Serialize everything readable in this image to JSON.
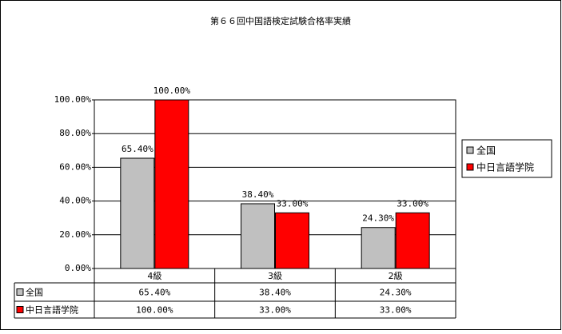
{
  "chart_data": {
    "type": "bar",
    "title": "第６６回中国語検定試験合格率実績",
    "categories": [
      "4級",
      "3級",
      "2級"
    ],
    "series": [
      {
        "name": "全国",
        "color": "#c0c0c0",
        "values": [
          65.4,
          38.4,
          24.3
        ],
        "value_labels": [
          "65.40%",
          "38.40%",
          "24.30%"
        ]
      },
      {
        "name": "中日言語学院",
        "color": "#ff0000",
        "values": [
          100,
          33,
          33
        ],
        "value_labels": [
          "100.00%",
          "33.00%",
          "33.00%"
        ]
      }
    ],
    "ylim": [
      0,
      100
    ],
    "yticks": [
      {
        "value": 0,
        "label": "0.00%"
      },
      {
        "value": 20,
        "label": "20.00%"
      },
      {
        "value": 40,
        "label": "40.00%"
      },
      {
        "value": 60,
        "label": "60.00%"
      },
      {
        "value": 80,
        "label": "80.00%"
      },
      {
        "value": 100,
        "label": "100.00%"
      }
    ],
    "grid": true,
    "legend": "right"
  }
}
